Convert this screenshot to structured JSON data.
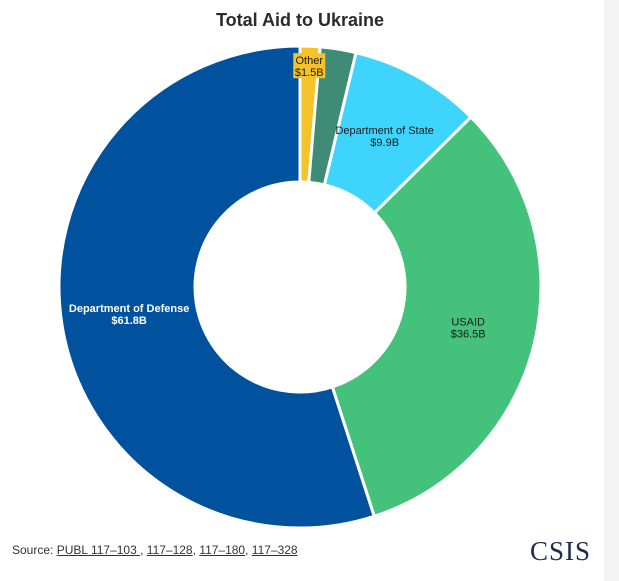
{
  "chart_data": {
    "type": "pie",
    "subtype": "donut",
    "title": "Total Aid to Ukraine",
    "slices": [
      {
        "label": "Other",
        "value_label": "$1.5B",
        "value": 1.5,
        "color": "#f5c22a",
        "text_color": "#1a1a1a",
        "label_bg": "#f5c22a"
      },
      {
        "label": "",
        "value_label": "",
        "value": 2.7,
        "color": "#3f8c76"
      },
      {
        "label": "Department of State",
        "value_label": "$9.9B",
        "value": 9.9,
        "color": "#3fd4fb",
        "text_color": "#1a1a1a"
      },
      {
        "label": "USAID",
        "value_label": "$36.5B",
        "value": 36.5,
        "color": "#44c17b",
        "text_color": "#1a1a1a"
      },
      {
        "label": "Department of Defense",
        "value_label": "$61.8B",
        "value": 61.8,
        "color": "#00529f",
        "text_color": "#ffffff"
      }
    ]
  },
  "footer": {
    "source_prefix": "Source: ",
    "links": [
      "PUBL 117–103 ",
      "117–128",
      "117–180",
      "117–328"
    ],
    "separator": ", ",
    "logo_text": "CSIS"
  }
}
